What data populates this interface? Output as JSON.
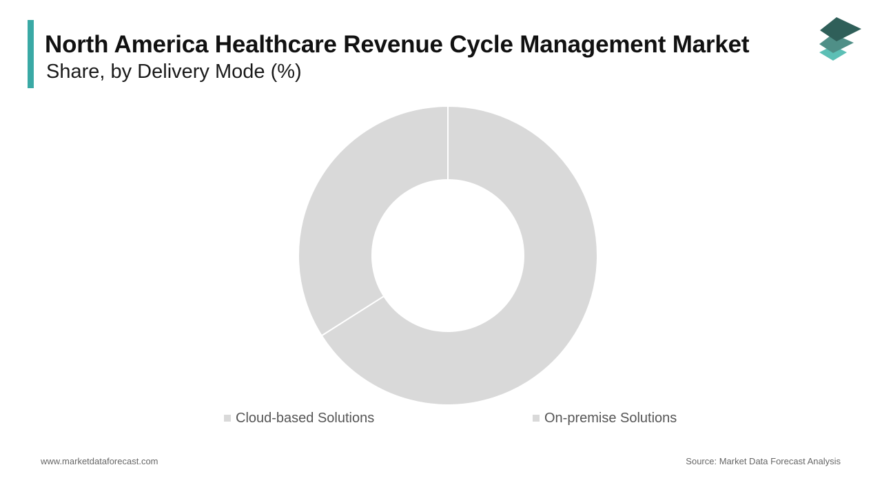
{
  "header": {
    "title": "North America Healthcare Revenue Cycle Management Market",
    "subtitle": "Share, by Delivery Mode (%)",
    "accent_color": "#3aa9a5"
  },
  "logo": {
    "icon": "stacked-layers-logo",
    "colors": [
      "#2f5f59",
      "#4f8f87",
      "#5cbfb5"
    ]
  },
  "chart_data": {
    "type": "pie",
    "variant": "donut",
    "categories": [
      "Cloud-based Solutions",
      "On-premise Solutions"
    ],
    "values": [
      66,
      34
    ],
    "unit": "%",
    "colors": [
      "#d9d9d9",
      "#d9d9d9"
    ],
    "start": "12 o'clock",
    "direction": "clockwise",
    "legend_position": "bottom",
    "data_labels": false
  },
  "footer": {
    "website": "www.marketdataforecast.com",
    "source": "Source: Market Data Forecast Analysis"
  }
}
